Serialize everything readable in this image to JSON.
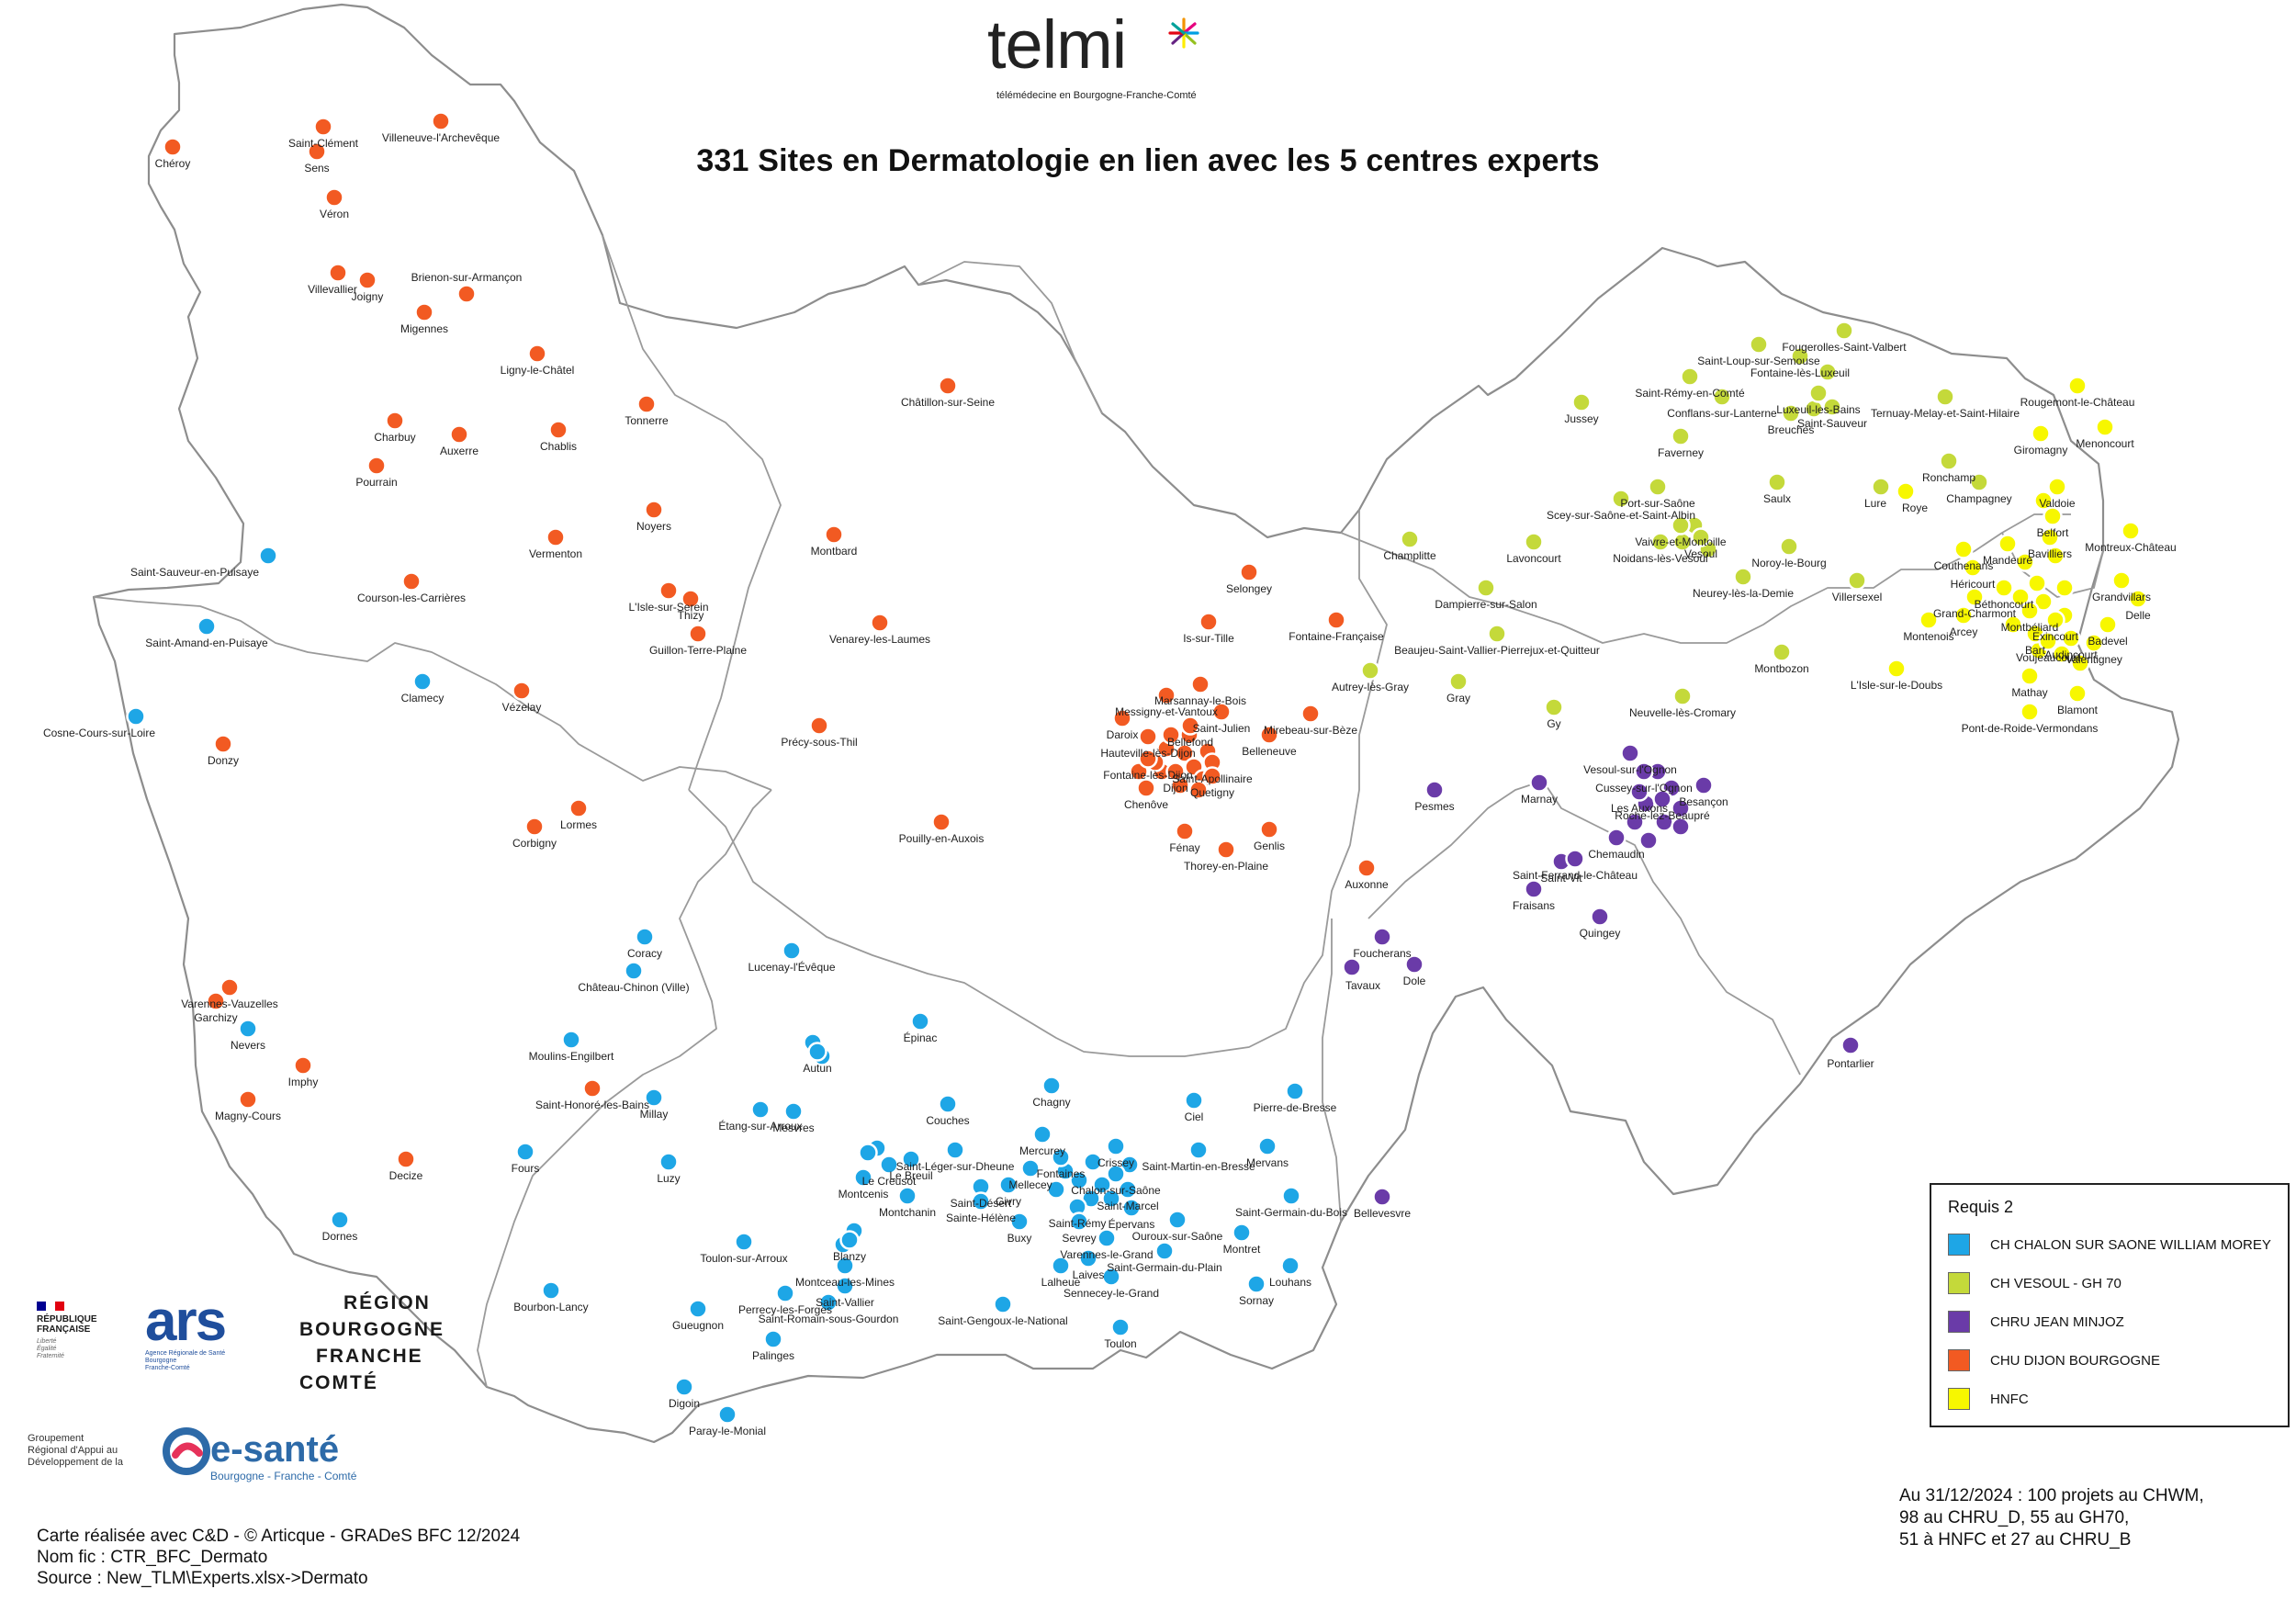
{
  "title": "331 Sites en Dermatologie en lien avec les 5 centres experts",
  "logo": {
    "name": "telmi",
    "tagline": "télémédecine en Bourgogne-Franche-Comté"
  },
  "legend": {
    "title": "Requis 2",
    "items": [
      {
        "key": "CHWM",
        "label": "CH CHALON SUR SAONE WILLIAM MOREY",
        "color": "#1ea6e6"
      },
      {
        "key": "GH70",
        "label": "CH VESOUL - GH 70",
        "color": "#c4d93a"
      },
      {
        "key": "CHRUB",
        "label": "CHRU JEAN MINJOZ",
        "color": "#6a3ba8"
      },
      {
        "key": "CHRUD",
        "label": "CHU DIJON BOURGOGNE",
        "color": "#f25a22"
      },
      {
        "key": "HNFC",
        "label": "HNFC",
        "color": "#f7f700"
      }
    ]
  },
  "note": [
    "Au 31/12/2024 : 100 projets au CHWM,",
    "98 au CHRU_D, 55 au GH70,",
    "51 à HNFC et 27 au CHRU_B"
  ],
  "credits": [
    "Carte réalisée avec C&D - © Articque - GRADeS BFC 12/2024",
    "Nom fic : CTR_BFC_Dermato",
    "Source : New_TLM\\Experts.xlsx->Dermato"
  ],
  "partners": {
    "republique": {
      "lines": [
        "RÉPUBLIQUE",
        "FRANÇAISE"
      ],
      "motto": [
        "Liberté",
        "Égalité",
        "Fraternité"
      ],
      "flag": [
        "#000091",
        "#ffffff",
        "#e1000f"
      ]
    },
    "ars": {
      "mark": "ars",
      "tagline": [
        "Agence Régionale de Santé",
        "Bourgogne",
        "Franche-Comté"
      ]
    },
    "region": [
      "RÉGION",
      "BOURGOGNE",
      "FRANCHE",
      "COMTÉ"
    ],
    "esante": {
      "group": [
        "Groupement",
        "Régional d'Appui au",
        "Développement de la"
      ],
      "name": "e-santé",
      "sub": "Bourgogne - Franche - Comté"
    }
  },
  "places": [
    {
      "n": "Chéroy",
      "c": "CHRUD"
    },
    {
      "n": "Saint-Clément",
      "c": "CHRUD"
    },
    {
      "n": "Sens",
      "c": "CHRUD"
    },
    {
      "n": "Villeneuve-l'Archevêque",
      "c": "CHRUD"
    },
    {
      "n": "Véron",
      "c": "CHRUD"
    },
    {
      "n": "Villevallier",
      "c": "CHRUD"
    },
    {
      "n": "Joigny",
      "c": "CHRUD"
    },
    {
      "n": "Brienon-sur-Armançon",
      "c": "CHRUD"
    },
    {
      "n": "Migennes",
      "c": "CHRUD"
    },
    {
      "n": "Ligny-le-Châtel",
      "c": "CHRUD"
    },
    {
      "n": "Tonnerre",
      "c": "CHRUD"
    },
    {
      "n": "Charbuy",
      "c": "CHRUD"
    },
    {
      "n": "Auxerre",
      "c": "CHRUD"
    },
    {
      "n": "Chablis",
      "c": "CHRUD"
    },
    {
      "n": "Pourrain",
      "c": "CHRUD"
    },
    {
      "n": "Noyers",
      "c": "CHRUD"
    },
    {
      "n": "Vermenton",
      "c": "CHRUD"
    },
    {
      "n": "Saint-Sauveur-en-Puisaye",
      "c": "CHWM"
    },
    {
      "n": "Courson-les-Carrières",
      "c": "CHRUD"
    },
    {
      "n": "L'Isle-sur-Serein",
      "c": "CHRUD"
    },
    {
      "n": "Thizy",
      "c": "CHRUD"
    },
    {
      "n": "Guillon-Terre-Plaine",
      "c": "CHRUD"
    },
    {
      "n": "Saint-Amand-en-Puisaye",
      "c": "CHWM"
    },
    {
      "n": "Clamecy",
      "c": "CHWM"
    },
    {
      "n": "Vézelay",
      "c": "CHRUD"
    },
    {
      "n": "Cosne-Cours-sur-Loire",
      "c": "CHWM"
    },
    {
      "n": "Donzy",
      "c": "CHRUD"
    },
    {
      "n": "Lormes",
      "c": "CHRUD"
    },
    {
      "n": "Corbigny",
      "c": "CHRUD"
    },
    {
      "n": "Châtillon-sur-Seine",
      "c": "CHRUD"
    },
    {
      "n": "Montbard",
      "c": "CHRUD"
    },
    {
      "n": "Venarey-les-Laumes",
      "c": "CHRUD"
    },
    {
      "n": "Précy-sous-Thil",
      "c": "CHRUD"
    },
    {
      "n": "Pouilly-en-Auxois",
      "c": "CHRUD"
    },
    {
      "n": "Selongey",
      "c": "CHRUD"
    },
    {
      "n": "Is-sur-Tille",
      "c": "CHRUD"
    },
    {
      "n": "Fontaine-Française",
      "c": "CHRUD"
    },
    {
      "n": "Marsannay-le-Bois",
      "c": "CHRUD"
    },
    {
      "n": "Messigny-et-Vantoux",
      "c": "CHRUD"
    },
    {
      "n": "Saint-Julien",
      "c": "CHRUD"
    },
    {
      "n": "Mirebeau-sur-Bèze",
      "c": "CHRUD"
    },
    {
      "n": "Daroix",
      "c": "CHRUD"
    },
    {
      "n": "Bellefond",
      "c": "CHRUD"
    },
    {
      "n": "Hauteville-lès-Dijon",
      "c": "CHRUD"
    },
    {
      "n": "Belleneuve",
      "c": "CHRUD"
    },
    {
      "n": "Fontaine-lès-Dijon",
      "c": "CHRUD"
    },
    {
      "n": "Saint-Apollinaire",
      "c": "CHRUD"
    },
    {
      "n": "Quetigny",
      "c": "CHRUD"
    },
    {
      "n": "Dijon",
      "c": "CHRUD"
    },
    {
      "n": "Chenôve",
      "c": "CHRUD"
    },
    {
      "n": "Fénay",
      "c": "CHRUD"
    },
    {
      "n": "Genlis",
      "c": "CHRUD"
    },
    {
      "n": "Thorey-en-Plaine",
      "c": "CHRUD"
    },
    {
      "n": "Auxonne",
      "c": "CHRUD"
    },
    {
      "n": "Coracy",
      "c": "CHWM"
    },
    {
      "n": "Château-Chinon (Ville)",
      "c": "CHWM"
    },
    {
      "n": "Lucenay-l'Évêque",
      "c": "CHWM"
    },
    {
      "n": "Varennes-Vauzelles",
      "c": "CHRUD"
    },
    {
      "n": "Garchizy",
      "c": "CHRUD"
    },
    {
      "n": "Nevers",
      "c": "CHWM"
    },
    {
      "n": "Moulins-Engilbert",
      "c": "CHWM"
    },
    {
      "n": "Imphy",
      "c": "CHRUD"
    },
    {
      "n": "Magny-Cours",
      "c": "CHRUD"
    },
    {
      "n": "Saint-Honoré-les-Bains",
      "c": "CHRUD"
    },
    {
      "n": "Autun",
      "c": "CHWM"
    },
    {
      "n": "Épinac",
      "c": "CHWM"
    },
    {
      "n": "Étang-sur-Arroux",
      "c": "CHWM"
    },
    {
      "n": "Couches",
      "c": "CHWM"
    },
    {
      "n": "Chagny",
      "c": "CHWM"
    },
    {
      "n": "Millay",
      "c": "CHWM"
    },
    {
      "n": "Mesvres",
      "c": "CHWM"
    },
    {
      "n": "Decize",
      "c": "CHRUD"
    },
    {
      "n": "Fours",
      "c": "CHWM"
    },
    {
      "n": "Luzy",
      "c": "CHWM"
    },
    {
      "n": "Dornes",
      "c": "CHWM"
    },
    {
      "n": "Saint-Léger-sur-Dheune",
      "c": "CHWM"
    },
    {
      "n": "Le Creusot",
      "c": "CHWM"
    },
    {
      "n": "Le Breuil",
      "c": "CHWM"
    },
    {
      "n": "Montcenis",
      "c": "CHWM"
    },
    {
      "n": "Montchanin",
      "c": "CHWM"
    },
    {
      "n": "Mercurey",
      "c": "CHWM"
    },
    {
      "n": "Fontaines",
      "c": "CHWM"
    },
    {
      "n": "Crissey",
      "c": "CHWM"
    },
    {
      "n": "Mellecey",
      "c": "CHWM"
    },
    {
      "n": "Givry",
      "c": "CHWM"
    },
    {
      "n": "Chalon-sur-Saône",
      "c": "CHWM"
    },
    {
      "n": "Saint-Rémy",
      "c": "CHWM"
    },
    {
      "n": "Saint-Marcel",
      "c": "CHWM"
    },
    {
      "n": "Saint-Martin-en-Bresse",
      "c": "CHWM"
    },
    {
      "n": "Saint-Désert",
      "c": "CHWM"
    },
    {
      "n": "Sevrey",
      "c": "CHWM"
    },
    {
      "n": "Épervans",
      "c": "CHWM"
    },
    {
      "n": "Ouroux-sur-Saône",
      "c": "CHWM"
    },
    {
      "n": "Saint-Germain-du-Bois",
      "c": "CHWM"
    },
    {
      "n": "Ciel",
      "c": "CHWM"
    },
    {
      "n": "Mervans",
      "c": "CHWM"
    },
    {
      "n": "Pierre-de-Bresse",
      "c": "CHWM"
    },
    {
      "n": "Buxy",
      "c": "CHWM"
    },
    {
      "n": "Varennes-le-Grand",
      "c": "CHWM"
    },
    {
      "n": "Saint-Germain-du-Plain",
      "c": "CHWM"
    },
    {
      "n": "Montret",
      "c": "CHWM"
    },
    {
      "n": "Louhans",
      "c": "CHWM"
    },
    {
      "n": "Sornay",
      "c": "CHWM"
    },
    {
      "n": "Lalheue",
      "c": "CHWM"
    },
    {
      "n": "Laives",
      "c": "CHWM"
    },
    {
      "n": "Sennecey-le-Grand",
      "c": "CHWM"
    },
    {
      "n": "Toulon-sur-Arroux",
      "c": "CHWM"
    },
    {
      "n": "Blanzy",
      "c": "CHWM"
    },
    {
      "n": "Montceau-les-Mines",
      "c": "CHWM"
    },
    {
      "n": "Saint-Vallier",
      "c": "CHWM"
    },
    {
      "n": "Perrecy-les-Forges",
      "c": "CHWM"
    },
    {
      "n": "Saint-Romain-sous-Gourdon",
      "c": "CHWM"
    },
    {
      "n": "Saint-Gengoux-le-National",
      "c": "CHWM"
    },
    {
      "n": "Toulon",
      "c": "CHWM"
    },
    {
      "n": "Bourbon-Lancy",
      "c": "CHWM"
    },
    {
      "n": "Gueugnon",
      "c": "CHWM"
    },
    {
      "n": "Palinges",
      "c": "CHWM"
    },
    {
      "n": "Digoin",
      "c": "CHWM"
    },
    {
      "n": "Paray-le-Monial",
      "c": "CHWM"
    },
    {
      "n": "Sainte-Hélène",
      "c": "CHWM"
    },
    {
      "n": "Bellevesvre",
      "c": "CHRUB"
    },
    {
      "n": "Tavaux",
      "c": "CHRUB"
    },
    {
      "n": "Foucherans",
      "c": "CHRUB"
    },
    {
      "n": "Dole",
      "c": "CHRUB"
    },
    {
      "n": "Pontarlier",
      "c": "CHRUB"
    },
    {
      "n": "Quingey",
      "c": "CHRUB"
    },
    {
      "n": "Fraisans",
      "c": "CHRUB"
    },
    {
      "n": "Saint-Vit",
      "c": "CHRUB"
    },
    {
      "n": "Saint-Ferrand-le-Château",
      "c": "CHRUB"
    },
    {
      "n": "Marnay",
      "c": "CHRUB"
    },
    {
      "n": "Pesmes",
      "c": "CHRUB"
    },
    {
      "n": "Besançon",
      "c": "CHRUB"
    },
    {
      "n": "Roche-lez-Beaupré",
      "c": "CHRUB"
    },
    {
      "n": "Les Auxons",
      "c": "CHRUB"
    },
    {
      "n": "Chemaudin",
      "c": "CHRUB"
    },
    {
      "n": "Cussey-sur-l'Ognon",
      "c": "CHRUB"
    },
    {
      "n": "Vesoul-sur-l'Ognon",
      "c": "CHRUB"
    },
    {
      "n": "Fougerolles-Saint-Valbert",
      "c": "GH70"
    },
    {
      "n": "Saint-Loup-sur-Semouse",
      "c": "GH70"
    },
    {
      "n": "Fontaine-lès-Luxeuil",
      "c": "GH70"
    },
    {
      "n": "Saint-Rémy-en-Comté",
      "c": "GH70"
    },
    {
      "n": "Conflans-sur-Lanterne",
      "c": "GH70"
    },
    {
      "n": "Luxeuil-les-Bains",
      "c": "GH70"
    },
    {
      "n": "Breuches",
      "c": "GH70"
    },
    {
      "n": "Saint-Sauveur",
      "c": "GH70"
    },
    {
      "n": "Ternuay-Melay-et-Saint-Hilaire",
      "c": "GH70"
    },
    {
      "n": "Jussey",
      "c": "GH70"
    },
    {
      "n": "Faverney",
      "c": "GH70"
    },
    {
      "n": "Port-sur-Saône",
      "c": "GH70"
    },
    {
      "n": "Saulx",
      "c": "GH70"
    },
    {
      "n": "Lure",
      "c": "GH70"
    },
    {
      "n": "Roye",
      "c": "HNFC"
    },
    {
      "n": "Ronchamp",
      "c": "GH70"
    },
    {
      "n": "Champagney",
      "c": "GH70"
    },
    {
      "n": "Scey-sur-Saône-et-Saint-Albin",
      "c": "GH70"
    },
    {
      "n": "Vaivre-et-Montoille",
      "c": "GH70"
    },
    {
      "n": "Vesoul",
      "c": "GH70"
    },
    {
      "n": "Noidans-lès-Vesoul",
      "c": "GH70"
    },
    {
      "n": "Noroy-le-Bourg",
      "c": "GH70"
    },
    {
      "n": "Neurey-lès-la-Demie",
      "c": "GH70"
    },
    {
      "n": "Villersexel",
      "c": "GH70"
    },
    {
      "n": "Champlitte",
      "c": "GH70"
    },
    {
      "n": "Lavoncourt",
      "c": "GH70"
    },
    {
      "n": "Dampierre-sur-Salon",
      "c": "GH70"
    },
    {
      "n": "Beaujeu-Saint-Vallier-Pierrejux-et-Quitteur",
      "c": "GH70"
    },
    {
      "n": "Autrey-lès-Gray",
      "c": "GH70"
    },
    {
      "n": "Gray",
      "c": "GH70"
    },
    {
      "n": "Gy",
      "c": "GH70"
    },
    {
      "n": "Montbozon",
      "c": "GH70"
    },
    {
      "n": "Neuvelle-lès-Cromary",
      "c": "GH70"
    },
    {
      "n": "Rougemont-le-Château",
      "c": "HNFC"
    },
    {
      "n": "Giromagny",
      "c": "HNFC"
    },
    {
      "n": "Menoncourt",
      "c": "HNFC"
    },
    {
      "n": "Valdoie",
      "c": "HNFC"
    },
    {
      "n": "Belfort",
      "c": "HNFC"
    },
    {
      "n": "Couthenans",
      "c": "HNFC"
    },
    {
      "n": "Mandeure",
      "c": "HNFC"
    },
    {
      "n": "Bavilliers",
      "c": "HNFC"
    },
    {
      "n": "Montreux-Château",
      "c": "HNFC"
    },
    {
      "n": "Héricourt",
      "c": "HNFC"
    },
    {
      "n": "Grandvillars",
      "c": "HNFC"
    },
    {
      "n": "Béthoncourt",
      "c": "HNFC"
    },
    {
      "n": "Grand-Charmont",
      "c": "HNFC"
    },
    {
      "n": "Montbéliard",
      "c": "HNFC"
    },
    {
      "n": "Delle",
      "c": "HNFC"
    },
    {
      "n": "Exincourt",
      "c": "HNFC"
    },
    {
      "n": "Badevel",
      "c": "HNFC"
    },
    {
      "n": "Arcey",
      "c": "HNFC"
    },
    {
      "n": "Montenois",
      "c": "HNFC"
    },
    {
      "n": "Bart",
      "c": "HNFC"
    },
    {
      "n": "Voujeaucourt",
      "c": "HNFC"
    },
    {
      "n": "Audincourt",
      "c": "HNFC"
    },
    {
      "n": "Valentigney",
      "c": "HNFC"
    },
    {
      "n": "L'Isle-sur-le-Doubs",
      "c": "HNFC"
    },
    {
      "n": "Mathay",
      "c": "HNFC"
    },
    {
      "n": "Blamont",
      "c": "HNFC"
    },
    {
      "n": "Pont-de-Roide-Vermondans",
      "c": "HNFC"
    }
  ]
}
